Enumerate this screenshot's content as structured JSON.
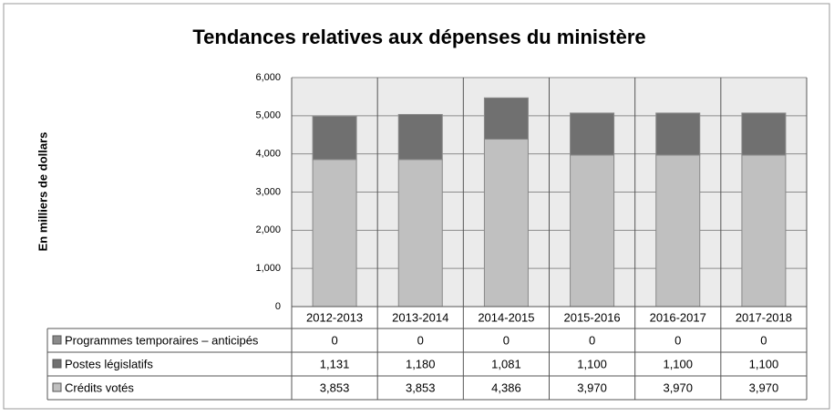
{
  "chart_data": {
    "type": "bar",
    "stacked": true,
    "title": "Tendances relatives aux dépenses du ministère",
    "y_label": "En milliers de dollars",
    "categories": [
      "2012-2013",
      "2013-2014",
      "2014-2015",
      "2015-2016",
      "2016-2017",
      "2017-2018"
    ],
    "series": [
      {
        "name": "Programmes temporaires – anticipés",
        "color": "#8a8a8a",
        "values": [
          0,
          0,
          0,
          0,
          0,
          0
        ]
      },
      {
        "name": "Postes législatifs",
        "color": "#707070",
        "values": [
          1131,
          1180,
          1081,
          1100,
          1100,
          1100
        ],
        "value_labels": [
          "1,131",
          "1,180",
          "1,081",
          "1,100",
          "1,100",
          "1,100"
        ]
      },
      {
        "name": "Crédits votés",
        "color": "#c0c0c0",
        "values": [
          3853,
          3853,
          4386,
          3970,
          3970,
          3970
        ],
        "value_labels": [
          "3,853",
          "3,853",
          "4,386",
          "3,970",
          "3,970",
          "3,970"
        ]
      }
    ],
    "ylim": [
      0,
      6000
    ],
    "yticks": [
      0,
      {
        "value": 1000,
        "label": "1,000"
      },
      {
        "value": 2000,
        "label": "2,000"
      },
      {
        "value": 3000,
        "label": "3,000"
      },
      {
        "value": 4000,
        "label": "4,000"
      },
      {
        "value": 5000,
        "label": "5,000"
      },
      {
        "value": 6000,
        "label": "6,000"
      }
    ],
    "grid": true
  }
}
